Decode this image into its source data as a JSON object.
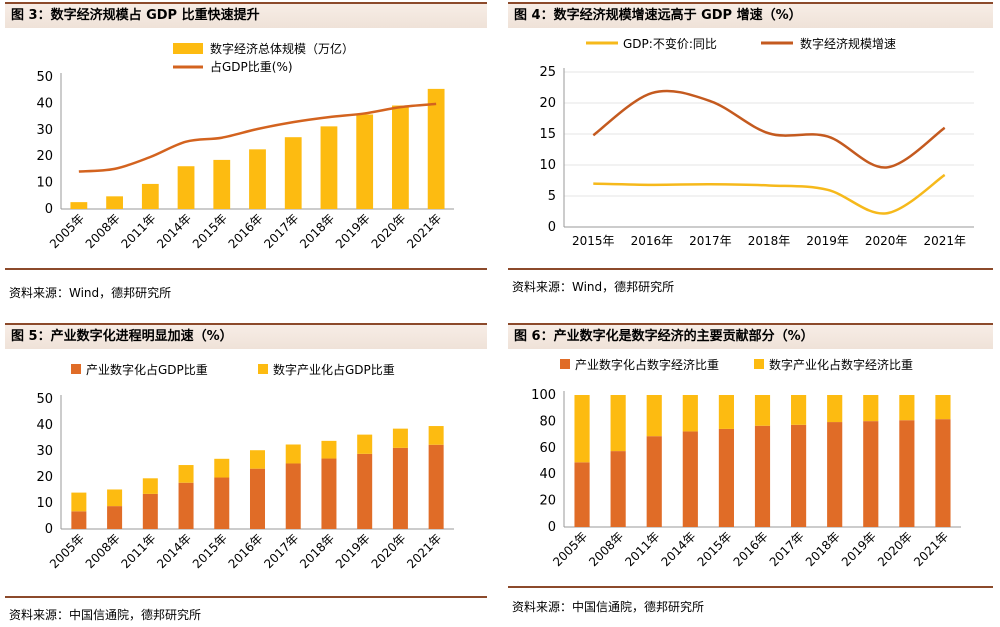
{
  "panels": [
    {
      "title": "图 3：数字经济规模占 GDP 比重快速提升",
      "source": "资料来源：Wind，德邦研究所"
    },
    {
      "title": "图 4：数字经济规模增速远高于 GDP 增速（%）",
      "source": "资料来源：Wind，德邦研究所"
    },
    {
      "title": "图 5：产业数字化进程明显加速（%）",
      "source": "资料来源：中国信通院，德邦研究所"
    },
    {
      "title": "图 6：产业数字化是数字经济的主要贡献部分（%）",
      "source": "资料来源：中国信通院，德邦研究所"
    }
  ],
  "chart_data": [
    {
      "type": "bar",
      "categories": [
        "2005年",
        "2008年",
        "2011年",
        "2014年",
        "2015年",
        "2016年",
        "2017年",
        "2018年",
        "2019年",
        "2020年",
        "2021年"
      ],
      "series": [
        {
          "name": "数字经济总体规模（万亿）",
          "type": "bar",
          "values": [
            2.6,
            4.8,
            9.5,
            16.2,
            18.6,
            22.6,
            27.2,
            31.3,
            35.8,
            39.2,
            45.5
          ]
        },
        {
          "name": "占GDP比重(%)",
          "type": "line",
          "values": [
            14.2,
            15.2,
            19.7,
            25.5,
            27.0,
            30.3,
            32.9,
            34.8,
            36.2,
            38.6,
            39.8
          ]
        }
      ],
      "ylim": [
        0,
        50
      ],
      "yticks": [
        0,
        10,
        20,
        30,
        40,
        50
      ],
      "colors": {
        "bar": "#fdbb11",
        "line": "#d3631f"
      }
    },
    {
      "type": "line",
      "categories": [
        "2015年",
        "2016年",
        "2017年",
        "2018年",
        "2019年",
        "2020年",
        "2021年"
      ],
      "series": [
        {
          "name": "GDP:不变价:同比",
          "values": [
            7.0,
            6.8,
            6.9,
            6.7,
            6.0,
            2.2,
            8.4
          ]
        },
        {
          "name": "数字经济规模增速",
          "values": [
            14.8,
            21.6,
            20.3,
            15.1,
            14.6,
            9.6,
            16.0
          ]
        }
      ],
      "ylim": [
        0,
        25
      ],
      "yticks": [
        0,
        5,
        10,
        15,
        20,
        25
      ],
      "colors": {
        "GDP:不变价:同比": "#f6b91b",
        "数字经济规模增速": "#c45a1f"
      }
    },
    {
      "type": "bar",
      "stacked": true,
      "categories": [
        "2005年",
        "2008年",
        "2011年",
        "2014年",
        "2015年",
        "2016年",
        "2017年",
        "2018年",
        "2019年",
        "2020年",
        "2021年"
      ],
      "series": [
        {
          "name": "产业数字化占GDP比重",
          "values": [
            6.8,
            8.8,
            13.5,
            17.8,
            19.8,
            23.2,
            25.2,
            27.1,
            28.9,
            31.2,
            32.4
          ]
        },
        {
          "name": "数字产业化占GDP比重",
          "values": [
            7.2,
            6.4,
            6.0,
            6.8,
            7.2,
            7.1,
            7.3,
            6.8,
            7.4,
            7.4,
            7.2
          ]
        }
      ],
      "ylim": [
        0,
        50
      ],
      "yticks": [
        0,
        10,
        20,
        30,
        40,
        50
      ],
      "colors": {
        "产业数字化占GDP比重": "#e06c27",
        "数字产业化占GDP比重": "#fdbb11"
      }
    },
    {
      "type": "bar",
      "stacked": true,
      "categories": [
        "2005年",
        "2008年",
        "2011年",
        "2014年",
        "2015年",
        "2016年",
        "2017年",
        "2018年",
        "2019年",
        "2020年",
        "2021年"
      ],
      "series": [
        {
          "name": "产业数字化占数字经济比重",
          "values": [
            49.0,
            57.5,
            68.8,
            72.4,
            74.3,
            76.7,
            77.4,
            79.5,
            80.2,
            80.9,
            81.7
          ]
        },
        {
          "name": "数字产业化占数字经济比重",
          "values": [
            51.0,
            42.5,
            31.2,
            27.6,
            25.7,
            23.3,
            22.6,
            20.5,
            19.8,
            19.1,
            18.3
          ]
        }
      ],
      "ylim": [
        0,
        100
      ],
      "yticks": [
        0,
        20,
        40,
        60,
        80,
        100
      ],
      "colors": {
        "产业数字化占数字经济比重": "#e06c27",
        "数字产业化占数字经济比重": "#fdbb11"
      }
    }
  ]
}
